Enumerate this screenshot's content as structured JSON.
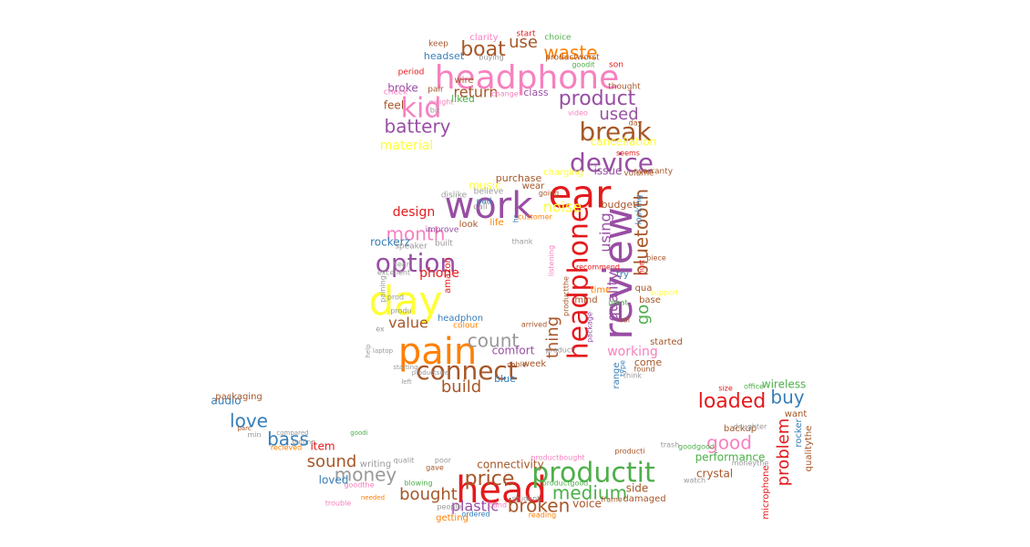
{
  "colors": {
    "purple": "#984ea3",
    "pink": "#f781bf",
    "red": "#e41a1c",
    "brown": "#a65628",
    "orange": "#ff7f00",
    "yellow": "#ffff33",
    "green": "#4daf4a",
    "blue": "#377eb8",
    "gray": "#999999"
  },
  "words": [
    {
      "text": "headphone",
      "color": "pink"
    },
    {
      "text": "kid",
      "color": "pink"
    },
    {
      "text": "boat",
      "color": "brown"
    },
    {
      "text": "use",
      "color": "brown"
    },
    {
      "text": "waste",
      "color": "orange"
    },
    {
      "text": "product",
      "color": "purple"
    },
    {
      "text": "used",
      "color": "purple"
    },
    {
      "text": "break",
      "color": "brown"
    },
    {
      "text": "battery",
      "color": "purple"
    },
    {
      "text": "return",
      "color": "brown"
    },
    {
      "text": "device",
      "color": "purple"
    },
    {
      "text": "ear",
      "color": "red"
    },
    {
      "text": "work",
      "color": "purple"
    },
    {
      "text": "option",
      "color": "purple"
    },
    {
      "text": "month",
      "color": "pink"
    },
    {
      "text": "day",
      "color": "yellow"
    },
    {
      "text": "pain",
      "color": "orange"
    },
    {
      "text": "connect",
      "color": "brown"
    },
    {
      "text": "count",
      "color": "gray"
    },
    {
      "text": "review",
      "color": "purple"
    },
    {
      "text": "headphone",
      "color": "red"
    },
    {
      "text": "bluetooth",
      "color": "brown"
    },
    {
      "text": "quality",
      "color": "purple"
    },
    {
      "text": "thing",
      "color": "brown"
    },
    {
      "text": "using",
      "color": "purple"
    },
    {
      "text": "noise",
      "color": "yellow"
    },
    {
      "text": "design",
      "color": "red"
    },
    {
      "text": "value",
      "color": "brown"
    },
    {
      "text": "build",
      "color": "brown"
    },
    {
      "text": "phone",
      "color": "red"
    },
    {
      "text": "head",
      "color": "red"
    },
    {
      "text": "productit",
      "color": "green"
    },
    {
      "text": "price",
      "color": "brown"
    },
    {
      "text": "money",
      "color": "gray"
    },
    {
      "text": "bought",
      "color": "brown"
    },
    {
      "text": "broken",
      "color": "brown"
    },
    {
      "text": "medium",
      "color": "green"
    },
    {
      "text": "plastic",
      "color": "purple"
    },
    {
      "text": "sound",
      "color": "brown"
    },
    {
      "text": "bass",
      "color": "blue"
    },
    {
      "text": "love",
      "color": "blue"
    },
    {
      "text": "loaded",
      "color": "red"
    },
    {
      "text": "buy",
      "color": "blue"
    },
    {
      "text": "good",
      "color": "pink"
    },
    {
      "text": "problem",
      "color": "red"
    },
    {
      "text": "go",
      "color": "green"
    },
    {
      "text": "working",
      "color": "pink"
    },
    {
      "text": "performance",
      "color": "green"
    },
    {
      "text": "cancellation",
      "color": "yellow"
    },
    {
      "text": "material",
      "color": "yellow"
    },
    {
      "text": "music",
      "color": "yellow"
    },
    {
      "text": "comfort",
      "color": "purple"
    },
    {
      "text": "audio",
      "color": "blue"
    },
    {
      "text": "item",
      "color": "red"
    },
    {
      "text": "loved",
      "color": "blue"
    },
    {
      "text": "connectivity",
      "color": "brown"
    },
    {
      "text": "voice",
      "color": "brown"
    },
    {
      "text": "side",
      "color": "brown"
    },
    {
      "text": "crystal",
      "color": "brown"
    },
    {
      "text": "wireless",
      "color": "green"
    },
    {
      "text": "rockerz",
      "color": "blue"
    },
    {
      "text": "purchase",
      "color": "brown"
    },
    {
      "text": "budget",
      "color": "brown"
    },
    {
      "text": "issue",
      "color": "purple"
    },
    {
      "text": "charging",
      "color": "yellow"
    },
    {
      "text": "feel",
      "color": "brown"
    },
    {
      "text": "broke",
      "color": "purple"
    },
    {
      "text": "liked",
      "color": "green"
    },
    {
      "text": "class",
      "color": "purple"
    },
    {
      "text": "headset",
      "color": "blue"
    },
    {
      "text": "clarity",
      "color": "pink"
    },
    {
      "text": "start",
      "color": "red"
    },
    {
      "text": "choice",
      "color": "green"
    },
    {
      "text": "range",
      "color": "blue"
    },
    {
      "text": "come",
      "color": "brown"
    },
    {
      "text": "started",
      "color": "brown"
    },
    {
      "text": "life",
      "color": "orange"
    },
    {
      "text": "look",
      "color": "brown"
    },
    {
      "text": "wear",
      "color": "brown"
    },
    {
      "text": "week",
      "color": "brown"
    },
    {
      "text": "blue",
      "color": "blue"
    },
    {
      "text": "want",
      "color": "brown"
    },
    {
      "text": "packaging",
      "color": "brown"
    },
    {
      "text": "writing",
      "color": "gray"
    },
    {
      "text": "getting",
      "color": "orange"
    },
    {
      "text": "damaged",
      "color": "brown"
    },
    {
      "text": "backup",
      "color": "brown"
    },
    {
      "text": "microphone",
      "color": "red"
    },
    {
      "text": "rocker",
      "color": "blue"
    },
    {
      "text": "qualitythe",
      "color": "brown"
    },
    {
      "text": "amazon",
      "color": "red"
    },
    {
      "text": "headphon",
      "color": "blue"
    },
    {
      "text": "colour",
      "color": "orange"
    },
    {
      "text": "mind",
      "color": "brown"
    },
    {
      "text": "time",
      "color": "orange"
    },
    {
      "text": "base",
      "color": "brown"
    },
    {
      "text": "try",
      "color": "blue"
    },
    {
      "text": "qua",
      "color": "brown"
    },
    {
      "text": "volume",
      "color": "brown"
    },
    {
      "text": "warranty",
      "color": "brown"
    },
    {
      "text": "looking",
      "color": "blue"
    },
    {
      "text": "improve",
      "color": "purple"
    },
    {
      "text": "speaker",
      "color": "gray"
    },
    {
      "text": "built",
      "color": "gray"
    },
    {
      "text": "call",
      "color": "gray"
    },
    {
      "text": "pad",
      "color": "blue"
    },
    {
      "text": "dislike",
      "color": "gray"
    },
    {
      "text": "believe",
      "color": "gray"
    },
    {
      "text": "customer",
      "color": "orange"
    },
    {
      "text": "thank",
      "color": "gray"
    },
    {
      "text": "hr",
      "color": "blue"
    },
    {
      "text": "going",
      "color": "brown"
    },
    {
      "text": "listening",
      "color": "pink"
    },
    {
      "text": "productthe",
      "color": "brown"
    },
    {
      "text": "seems",
      "color": "red"
    },
    {
      "text": "wire",
      "color": "brown"
    },
    {
      "text": "keep",
      "color": "brown"
    },
    {
      "text": "period",
      "color": "red"
    },
    {
      "text": "check",
      "color": "pink"
    },
    {
      "text": "pair",
      "color": "brown"
    },
    {
      "text": "weight",
      "color": "pink"
    },
    {
      "text": "bit",
      "color": "gray"
    },
    {
      "text": "change",
      "color": "pink"
    },
    {
      "text": "video",
      "color": "pink"
    },
    {
      "text": "thought",
      "color": "brown"
    },
    {
      "text": "productworst",
      "color": "brown"
    },
    {
      "text": "buying",
      "color": "gray"
    },
    {
      "text": "goodit",
      "color": "green"
    },
    {
      "text": "son",
      "color": "red"
    },
    {
      "text": "day",
      "color": "brown"
    },
    {
      "text": "hurt",
      "color": "red"
    },
    {
      "text": "recommend",
      "color": "red"
    },
    {
      "text": "support",
      "color": "yellow"
    },
    {
      "text": "piece",
      "color": "brown"
    },
    {
      "text": "great",
      "color": "green"
    },
    {
      "text": "vol",
      "color": "brown"
    },
    {
      "text": "package",
      "color": "purple"
    },
    {
      "text": "product",
      "color": "gray"
    },
    {
      "text": "hear",
      "color": "gray"
    },
    {
      "text": "paining",
      "color": "gray"
    },
    {
      "text": "prod",
      "color": "gray"
    },
    {
      "text": "produ",
      "color": "gray"
    },
    {
      "text": "excellent",
      "color": "gray"
    },
    {
      "text": "ex",
      "color": "gray"
    },
    {
      "text": "arrived",
      "color": "brown"
    },
    {
      "text": "cable",
      "color": "brown"
    },
    {
      "text": "type",
      "color": "blue"
    },
    {
      "text": "think",
      "color": "gray"
    },
    {
      "text": "found",
      "color": "brown"
    },
    {
      "text": "size",
      "color": "red"
    },
    {
      "text": "office",
      "color": "green"
    },
    {
      "text": "trash",
      "color": "gray"
    },
    {
      "text": "goodgood",
      "color": "green"
    },
    {
      "text": "moneythe",
      "color": "gray"
    },
    {
      "text": "daughter",
      "color": "gray"
    },
    {
      "text": "watch",
      "color": "gray"
    },
    {
      "text": "ordered",
      "color": "blue"
    },
    {
      "text": "people",
      "color": "gray"
    },
    {
      "text": "student",
      "color": "gray"
    },
    {
      "text": "band",
      "color": "pink"
    },
    {
      "text": "reading",
      "color": "orange"
    },
    {
      "text": "productgood",
      "color": "green"
    },
    {
      "text": "frame",
      "color": "brown"
    },
    {
      "text": "productbought",
      "color": "pink"
    },
    {
      "text": "producti",
      "color": "brown"
    },
    {
      "text": "blowing",
      "color": "green"
    },
    {
      "text": "gave",
      "color": "brown"
    },
    {
      "text": "poor",
      "color": "gray"
    },
    {
      "text": "qualit",
      "color": "gray"
    },
    {
      "text": "goodthe",
      "color": "pink"
    },
    {
      "text": "trouble",
      "color": "pink"
    },
    {
      "text": "needed",
      "color": "orange"
    },
    {
      "text": "min",
      "color": "gray"
    },
    {
      "text": "parc",
      "color": "brown"
    },
    {
      "text": "recieved",
      "color": "orange"
    },
    {
      "text": "compared",
      "color": "gray"
    },
    {
      "text": "putting",
      "color": "gray"
    },
    {
      "text": "goodi",
      "color": "green"
    },
    {
      "text": "left",
      "color": "gray"
    },
    {
      "text": "productsize",
      "color": "gray"
    },
    {
      "text": "starting",
      "color": "gray"
    },
    {
      "text": "laptop",
      "color": "gray"
    },
    {
      "text": "help",
      "color": "gray"
    }
  ]
}
